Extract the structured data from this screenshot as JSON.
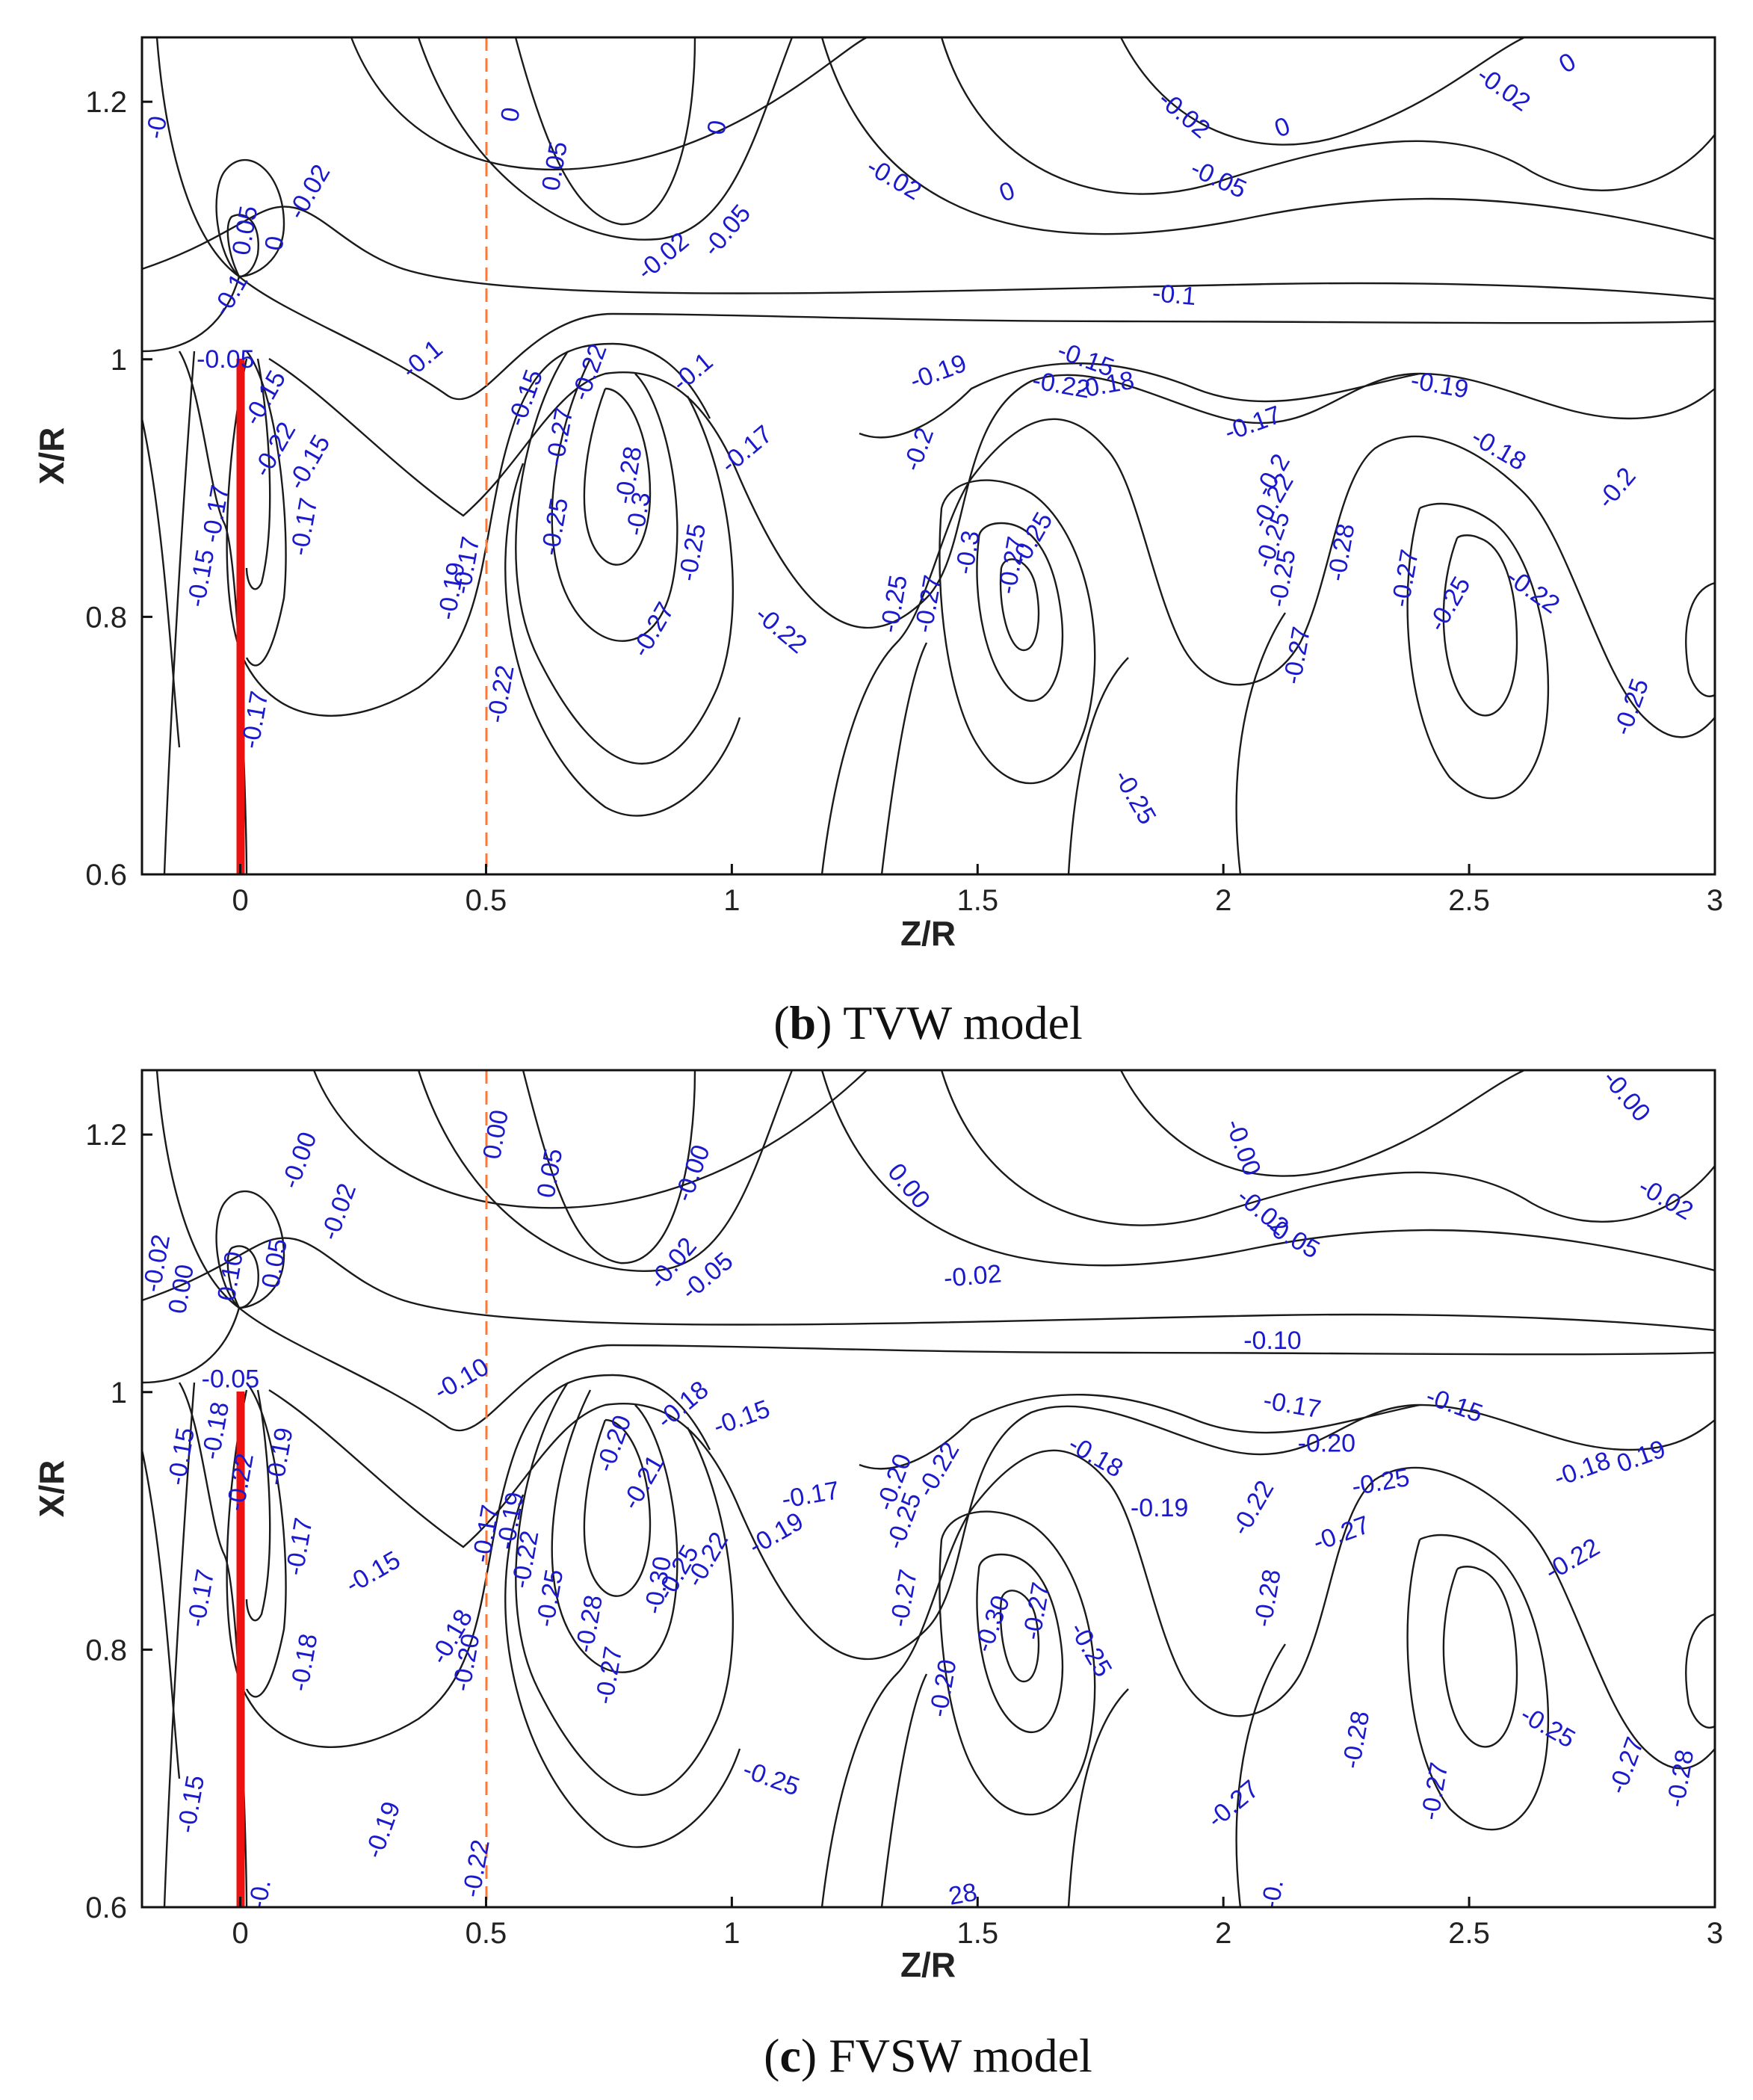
{
  "colors": {
    "contour": "#1a1a1a",
    "label": "#1a1acc",
    "blade": "#ee1111",
    "dashed": "#ff7733"
  },
  "chart_data": [
    {
      "type": "contour",
      "panel": "b",
      "caption_letter": "b",
      "caption_text": " TVW model",
      "xlabel": "Z/R",
      "ylabel": "X/R",
      "xlim": [
        -0.2,
        3.0
      ],
      "ylim": [
        0.6,
        1.25
      ],
      "xticks": [
        0,
        0.5,
        1,
        1.5,
        2,
        2.5,
        3
      ],
      "xtick_labels": [
        "0",
        "0.5",
        "1",
        "1.5",
        "2",
        "2.5",
        "3"
      ],
      "yticks": [
        0.6,
        0.8,
        1.0,
        1.2
      ],
      "ytick_labels": [
        "0.6",
        "0.8",
        "1",
        "1.2"
      ],
      "blade_z": 0,
      "blade_x_range": [
        0.6,
        1.0
      ],
      "dashed_line_z": 0.5,
      "contour_labels": [
        {
          "t": "-0",
          "z": -0.17,
          "x": 1.18,
          "r": -80
        },
        {
          "t": "0.05",
          "z": 0.01,
          "x": 1.1,
          "r": -80
        },
        {
          "t": "0",
          "z": 0.07,
          "x": 1.09,
          "r": -80
        },
        {
          "t": "-0.02",
          "z": 0.14,
          "x": 1.13,
          "r": -60
        },
        {
          "t": "-0.1",
          "z": -0.02,
          "x": 1.05,
          "r": -60
        },
        {
          "t": "-0.05",
          "z": -0.03,
          "x": 1.0,
          "r": 0
        },
        {
          "t": "-0.1",
          "z": 0.37,
          "x": 1.0,
          "r": -40
        },
        {
          "t": "0",
          "z": 0.55,
          "x": 1.19,
          "r": -80
        },
        {
          "t": "0.05",
          "z": 0.64,
          "x": 1.15,
          "r": -80
        },
        {
          "t": "0",
          "z": 0.97,
          "x": 1.18,
          "r": -80
        },
        {
          "t": "-0.02",
          "z": 0.86,
          "x": 1.08,
          "r": -40
        },
        {
          "t": "-0.05",
          "z": 0.99,
          "x": 1.1,
          "r": -50
        },
        {
          "t": "-0.02",
          "z": 1.33,
          "x": 1.14,
          "r": 30
        },
        {
          "t": "0",
          "z": 1.56,
          "x": 1.13,
          "r": -20
        },
        {
          "t": "-0.02",
          "z": 1.92,
          "x": 1.19,
          "r": 40
        },
        {
          "t": "-0.05",
          "z": 1.99,
          "x": 1.14,
          "r": 25
        },
        {
          "t": "0",
          "z": 2.12,
          "x": 1.18,
          "r": -20
        },
        {
          "t": "-0.02",
          "z": 2.57,
          "x": 1.21,
          "r": 35
        },
        {
          "t": "0",
          "z": 2.7,
          "x": 1.23,
          "r": -30
        },
        {
          "t": "-0.1",
          "z": 1.9,
          "x": 1.05,
          "r": 5
        },
        {
          "t": "-0.15",
          "z": 0.05,
          "x": 0.97,
          "r": -60
        },
        {
          "t": "-0.22",
          "z": 0.07,
          "x": 0.93,
          "r": -60
        },
        {
          "t": "-0.15",
          "z": 0.14,
          "x": 0.92,
          "r": -60
        },
        {
          "t": "-0.17",
          "z": 0.13,
          "x": 0.87,
          "r": -80
        },
        {
          "t": "-0.15",
          "z": -0.08,
          "x": 0.83,
          "r": -80
        },
        {
          "t": "-0.17",
          "z": -0.05,
          "x": 0.88,
          "r": -80
        },
        {
          "t": "-0.17",
          "z": 0.03,
          "x": 0.72,
          "r": -80
        },
        {
          "t": "-0.15",
          "z": 0.58,
          "x": 0.97,
          "r": -70
        },
        {
          "t": "-0.22",
          "z": 0.71,
          "x": 0.99,
          "r": -70
        },
        {
          "t": "-0.27",
          "z": 0.65,
          "x": 0.94,
          "r": -80
        },
        {
          "t": "-0.25",
          "z": 0.64,
          "x": 0.87,
          "r": -80
        },
        {
          "t": "-0.17",
          "z": 0.46,
          "x": 0.84,
          "r": -80
        },
        {
          "t": "-0.19",
          "z": 0.43,
          "x": 0.82,
          "r": -80
        },
        {
          "t": "-0.22",
          "z": 0.53,
          "x": 0.74,
          "r": -80
        },
        {
          "t": "-0.28",
          "z": 0.79,
          "x": 0.91,
          "r": -80
        },
        {
          "t": "-0.3",
          "z": 0.81,
          "x": 0.88,
          "r": -80
        },
        {
          "t": "-0.27",
          "z": 0.84,
          "x": 0.79,
          "r": -60
        },
        {
          "t": "-0.25",
          "z": 0.92,
          "x": 0.85,
          "r": -80
        },
        {
          "t": "-0.17",
          "z": 1.03,
          "x": 0.93,
          "r": -40
        },
        {
          "t": "-0.1",
          "z": 0.92,
          "x": 0.99,
          "r": -40
        },
        {
          "t": "-0.22",
          "z": 1.1,
          "x": 0.79,
          "r": 40
        },
        {
          "t": "-0.2",
          "z": 1.38,
          "x": 0.93,
          "r": -70
        },
        {
          "t": "-0.19",
          "z": 1.42,
          "x": 0.99,
          "r": -20
        },
        {
          "t": "-0.15",
          "z": 1.72,
          "x": 1.0,
          "r": 20
        },
        {
          "t": "-0.22",
          "z": 1.67,
          "x": 0.98,
          "r": 10
        },
        {
          "t": "-0.18",
          "z": 1.76,
          "x": 0.98,
          "r": -10
        },
        {
          "t": "-0.25",
          "z": 1.33,
          "x": 0.81,
          "r": -80
        },
        {
          "t": "-0.27",
          "z": 1.4,
          "x": 0.81,
          "r": -80
        },
        {
          "t": "-0.3",
          "z": 1.48,
          "x": 0.85,
          "r": -80
        },
        {
          "t": "-0.25",
          "z": 1.61,
          "x": 0.86,
          "r": -60
        },
        {
          "t": "-0.27",
          "z": 1.57,
          "x": 0.84,
          "r": -80
        },
        {
          "t": "-0.25",
          "z": 1.82,
          "x": 0.66,
          "r": 60
        },
        {
          "t": "-0.17",
          "z": 2.06,
          "x": 0.95,
          "r": -20
        },
        {
          "t": "-0.2",
          "z": 2.1,
          "x": 0.91,
          "r": -60
        },
        {
          "t": "-0.22",
          "z": 2.1,
          "x": 0.89,
          "r": -60
        },
        {
          "t": "-0.25",
          "z": 2.1,
          "x": 0.86,
          "r": -70
        },
        {
          "t": "-0.25",
          "z": 2.12,
          "x": 0.83,
          "r": -80
        },
        {
          "t": "-0.28",
          "z": 2.24,
          "x": 0.85,
          "r": -80
        },
        {
          "t": "-0.27",
          "z": 2.15,
          "x": 0.77,
          "r": -80
        },
        {
          "t": "-0.27",
          "z": 2.37,
          "x": 0.83,
          "r": -80
        },
        {
          "t": "-0.19",
          "z": 2.44,
          "x": 0.98,
          "r": 10
        },
        {
          "t": "-0.18",
          "z": 2.56,
          "x": 0.93,
          "r": 30
        },
        {
          "t": "-0.25",
          "z": 2.46,
          "x": 0.81,
          "r": -60
        },
        {
          "t": "-0.22",
          "z": 2.63,
          "x": 0.82,
          "r": 35
        },
        {
          "t": "-0.2",
          "z": 2.8,
          "x": 0.9,
          "r": -50
        },
        {
          "t": "-0.25",
          "z": 2.83,
          "x": 0.73,
          "r": -70
        }
      ]
    },
    {
      "type": "contour",
      "panel": "c",
      "caption_letter": "c",
      "caption_text": " FVSW model",
      "xlabel": "Z/R",
      "ylabel": "X/R",
      "xlim": [
        -0.2,
        3.0
      ],
      "ylim": [
        0.6,
        1.25
      ],
      "xticks": [
        0,
        0.5,
        1,
        1.5,
        2,
        2.5,
        3
      ],
      "xtick_labels": [
        "0",
        "0.5",
        "1",
        "1.5",
        "2",
        "2.5",
        "3"
      ],
      "yticks": [
        0.6,
        0.8,
        1.0,
        1.2
      ],
      "ytick_labels": [
        "0.6",
        "0.8",
        "1",
        "1.2"
      ],
      "blade_z": 0,
      "blade_x_range": [
        0.6,
        1.0
      ],
      "dashed_line_z": 0.5,
      "contour_labels": [
        {
          "t": "-0.00",
          "z": 0.12,
          "x": 1.18,
          "r": -70
        },
        {
          "t": "-0.02",
          "z": 0.2,
          "x": 1.14,
          "r": -70
        },
        {
          "t": "0.10",
          "z": -0.02,
          "x": 1.09,
          "r": -80
        },
        {
          "t": "0.05",
          "z": 0.07,
          "x": 1.1,
          "r": -80
        },
        {
          "t": "0.00",
          "z": -0.12,
          "x": 1.08,
          "r": -80
        },
        {
          "t": "-0.02",
          "z": -0.17,
          "x": 1.1,
          "r": -80
        },
        {
          "t": "-0.05",
          "z": -0.02,
          "x": 1.01,
          "r": 0
        },
        {
          "t": "-0.10",
          "z": 0.45,
          "x": 1.01,
          "r": -30
        },
        {
          "t": "0.00",
          "z": 0.52,
          "x": 1.2,
          "r": -80
        },
        {
          "t": "0.05",
          "z": 0.63,
          "x": 1.17,
          "r": -80
        },
        {
          "t": "-0.00",
          "z": 0.92,
          "x": 1.17,
          "r": -70
        },
        {
          "t": "-0.02",
          "z": 0.88,
          "x": 1.1,
          "r": -50
        },
        {
          "t": "-0.05",
          "z": 0.95,
          "x": 1.09,
          "r": -40
        },
        {
          "t": "0.00",
          "z": 1.36,
          "x": 1.16,
          "r": 50
        },
        {
          "t": "-0.02",
          "z": 1.49,
          "x": 1.09,
          "r": -5
        },
        {
          "t": "-0.00",
          "z": 2.04,
          "x": 1.19,
          "r": 70
        },
        {
          "t": "-0.02",
          "z": 2.08,
          "x": 1.14,
          "r": 40
        },
        {
          "t": "-0.05",
          "z": 2.14,
          "x": 1.12,
          "r": 30
        },
        {
          "t": "-0.00",
          "z": 2.82,
          "x": 1.23,
          "r": 50
        },
        {
          "t": "-0.02",
          "z": 2.9,
          "x": 1.15,
          "r": 30
        },
        {
          "t": "-0.10",
          "z": 2.1,
          "x": 1.04,
          "r": 0
        },
        {
          "t": "-0.15",
          "z": -0.12,
          "x": 0.95,
          "r": -80
        },
        {
          "t": "-0.18",
          "z": -0.05,
          "x": 0.97,
          "r": -80
        },
        {
          "t": "-0.22",
          "z": 0.0,
          "x": 0.93,
          "r": -80
        },
        {
          "t": "-0.19",
          "z": 0.08,
          "x": 0.95,
          "r": -80
        },
        {
          "t": "-0.17",
          "z": 0.12,
          "x": 0.88,
          "r": -80
        },
        {
          "t": "-0.17",
          "z": -0.08,
          "x": 0.84,
          "r": -80
        },
        {
          "t": "-0.18",
          "z": 0.13,
          "x": 0.79,
          "r": -80
        },
        {
          "t": "-0.15",
          "z": -0.1,
          "x": 0.68,
          "r": -80
        },
        {
          "t": "-0.15",
          "z": 0.27,
          "x": 0.86,
          "r": -30
        },
        {
          "t": "-0.18",
          "z": 0.43,
          "x": 0.81,
          "r": -60
        },
        {
          "t": "-0.20",
          "z": 0.46,
          "x": 0.79,
          "r": -80
        },
        {
          "t": "-0.17",
          "z": 0.5,
          "x": 0.89,
          "r": -80
        },
        {
          "t": "-0.19",
          "z": 0.55,
          "x": 0.9,
          "r": -80
        },
        {
          "t": "-0.22",
          "z": 0.58,
          "x": 0.87,
          "r": -80
        },
        {
          "t": "-0.25",
          "z": 0.63,
          "x": 0.84,
          "r": -80
        },
        {
          "t": "-0.28",
          "z": 0.71,
          "x": 0.82,
          "r": -80
        },
        {
          "t": "-0.27",
          "z": 0.75,
          "x": 0.78,
          "r": -80
        },
        {
          "t": "-0.19",
          "z": 0.29,
          "x": 0.66,
          "r": -70
        },
        {
          "t": "-0.22",
          "z": 0.48,
          "x": 0.63,
          "r": -80
        },
        {
          "t": "-0.20",
          "z": 0.76,
          "x": 0.96,
          "r": -70
        },
        {
          "t": "-0.21",
          "z": 0.82,
          "x": 0.93,
          "r": -60
        },
        {
          "t": "-0.18",
          "z": 0.9,
          "x": 0.99,
          "r": -40
        },
        {
          "t": "-0.15",
          "z": 1.02,
          "x": 0.98,
          "r": -20
        },
        {
          "t": "-0.30",
          "z": 0.85,
          "x": 0.85,
          "r": -80
        },
        {
          "t": "-0.25",
          "z": 0.89,
          "x": 0.86,
          "r": -60
        },
        {
          "t": "-0.22",
          "z": 0.95,
          "x": 0.87,
          "r": -60
        },
        {
          "t": "-0.19",
          "z": 1.09,
          "x": 0.89,
          "r": -30
        },
        {
          "t": "-0.17",
          "z": 1.16,
          "x": 0.92,
          "r": -10
        },
        {
          "t": "-0.25",
          "z": 1.08,
          "x": 0.7,
          "r": 20
        },
        {
          "t": "-0.20",
          "z": 1.33,
          "x": 0.93,
          "r": -70
        },
        {
          "t": "-0.22",
          "z": 1.42,
          "x": 0.94,
          "r": -60
        },
        {
          "t": "-0.25",
          "z": 1.35,
          "x": 0.9,
          "r": -70
        },
        {
          "t": "-0.27",
          "z": 1.35,
          "x": 0.84,
          "r": -80
        },
        {
          "t": "-0.20",
          "z": 1.43,
          "x": 0.77,
          "r": -80
        },
        {
          "t": "-0.30",
          "z": 1.53,
          "x": 0.82,
          "r": -70
        },
        {
          "t": "-0.27",
          "z": 1.62,
          "x": 0.83,
          "r": -80
        },
        {
          "t": "-0.25",
          "z": 1.73,
          "x": 0.8,
          "r": 60
        },
        {
          "t": "-0.18",
          "z": 1.74,
          "x": 0.95,
          "r": 30
        },
        {
          "t": "-0.19",
          "z": 1.87,
          "x": 0.91,
          "r": 0
        },
        {
          "t": "-0.22",
          "z": 2.06,
          "x": 0.91,
          "r": -60
        },
        {
          "t": "-0.17",
          "z": 2.14,
          "x": 0.99,
          "r": 10
        },
        {
          "t": "-0.20",
          "z": 2.21,
          "x": 0.96,
          "r": 0
        },
        {
          "t": "-0.25",
          "z": 2.32,
          "x": 0.93,
          "r": -10
        },
        {
          "t": "-0.27",
          "z": 2.24,
          "x": 0.89,
          "r": -20
        },
        {
          "t": "-0.28",
          "z": 2.09,
          "x": 0.84,
          "r": -80
        },
        {
          "t": "-0.28",
          "z": 2.27,
          "x": 0.73,
          "r": -80
        },
        {
          "t": "-0.27",
          "z": 2.43,
          "x": 0.69,
          "r": -80
        },
        {
          "t": "-0.27",
          "z": 2.02,
          "x": 0.68,
          "r": -40
        },
        {
          "t": "-0.15",
          "z": 2.47,
          "x": 0.99,
          "r": 20
        },
        {
          "t": "-0.18",
          "z": 2.73,
          "x": 0.94,
          "r": -20
        },
        {
          "t": "0.19",
          "z": 2.85,
          "x": 0.95,
          "r": -20
        },
        {
          "t": "-0.22",
          "z": 2.71,
          "x": 0.87,
          "r": -30
        },
        {
          "t": "-0.25",
          "z": 2.66,
          "x": 0.74,
          "r": 30
        },
        {
          "t": "-0.27",
          "z": 2.82,
          "x": 0.71,
          "r": -70
        },
        {
          "t": "-0.28",
          "z": 2.93,
          "x": 0.7,
          "r": -80
        },
        {
          "t": "-0.",
          "z": 2.1,
          "x": 0.61,
          "r": -80
        },
        {
          "t": "-0.",
          "z": 0.04,
          "x": 0.61,
          "r": -80
        },
        {
          "t": "28",
          "z": 1.47,
          "x": 0.61,
          "r": -10
        }
      ]
    }
  ]
}
